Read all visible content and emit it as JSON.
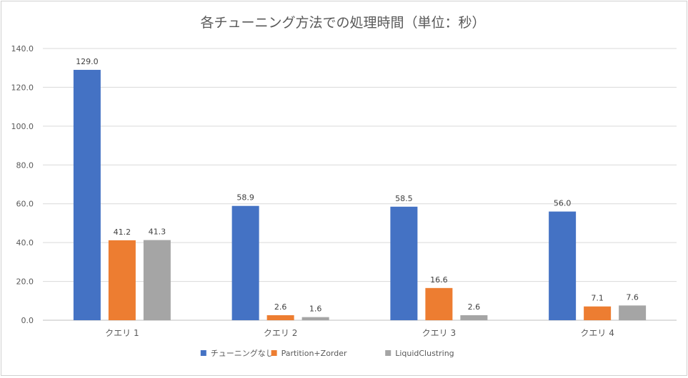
{
  "chart_data": {
    "type": "bar",
    "title": "各チューニング方法での処理時間（単位：秒）",
    "xlabel": "",
    "ylabel": "",
    "categories": [
      "クエリ 1",
      "クエリ 2",
      "クエリ 3",
      "クエリ 4"
    ],
    "series": [
      {
        "name": "チューニングなし",
        "color": "#4472c4",
        "values": [
          129.0,
          58.9,
          58.5,
          56.0
        ],
        "labels": [
          "129.0",
          "58.9",
          "58.5",
          "56.0"
        ]
      },
      {
        "name": "Partition+Zorder",
        "color": "#ed7d31",
        "values": [
          41.2,
          2.6,
          16.6,
          7.1
        ],
        "labels": [
          "41.2",
          "2.6",
          "16.6",
          "7.1"
        ]
      },
      {
        "name": "LiquidClustring",
        "color": "#a5a5a5",
        "values": [
          41.3,
          1.6,
          2.6,
          7.6
        ],
        "labels": [
          "41.3",
          "1.6",
          "2.6",
          "7.6"
        ]
      }
    ],
    "ylim": [
      0,
      140
    ],
    "yticks": [
      "0.0",
      "20.0",
      "40.0",
      "60.0",
      "80.0",
      "100.0",
      "120.0",
      "140.0"
    ],
    "grid": true,
    "legend_position": "bottom"
  }
}
